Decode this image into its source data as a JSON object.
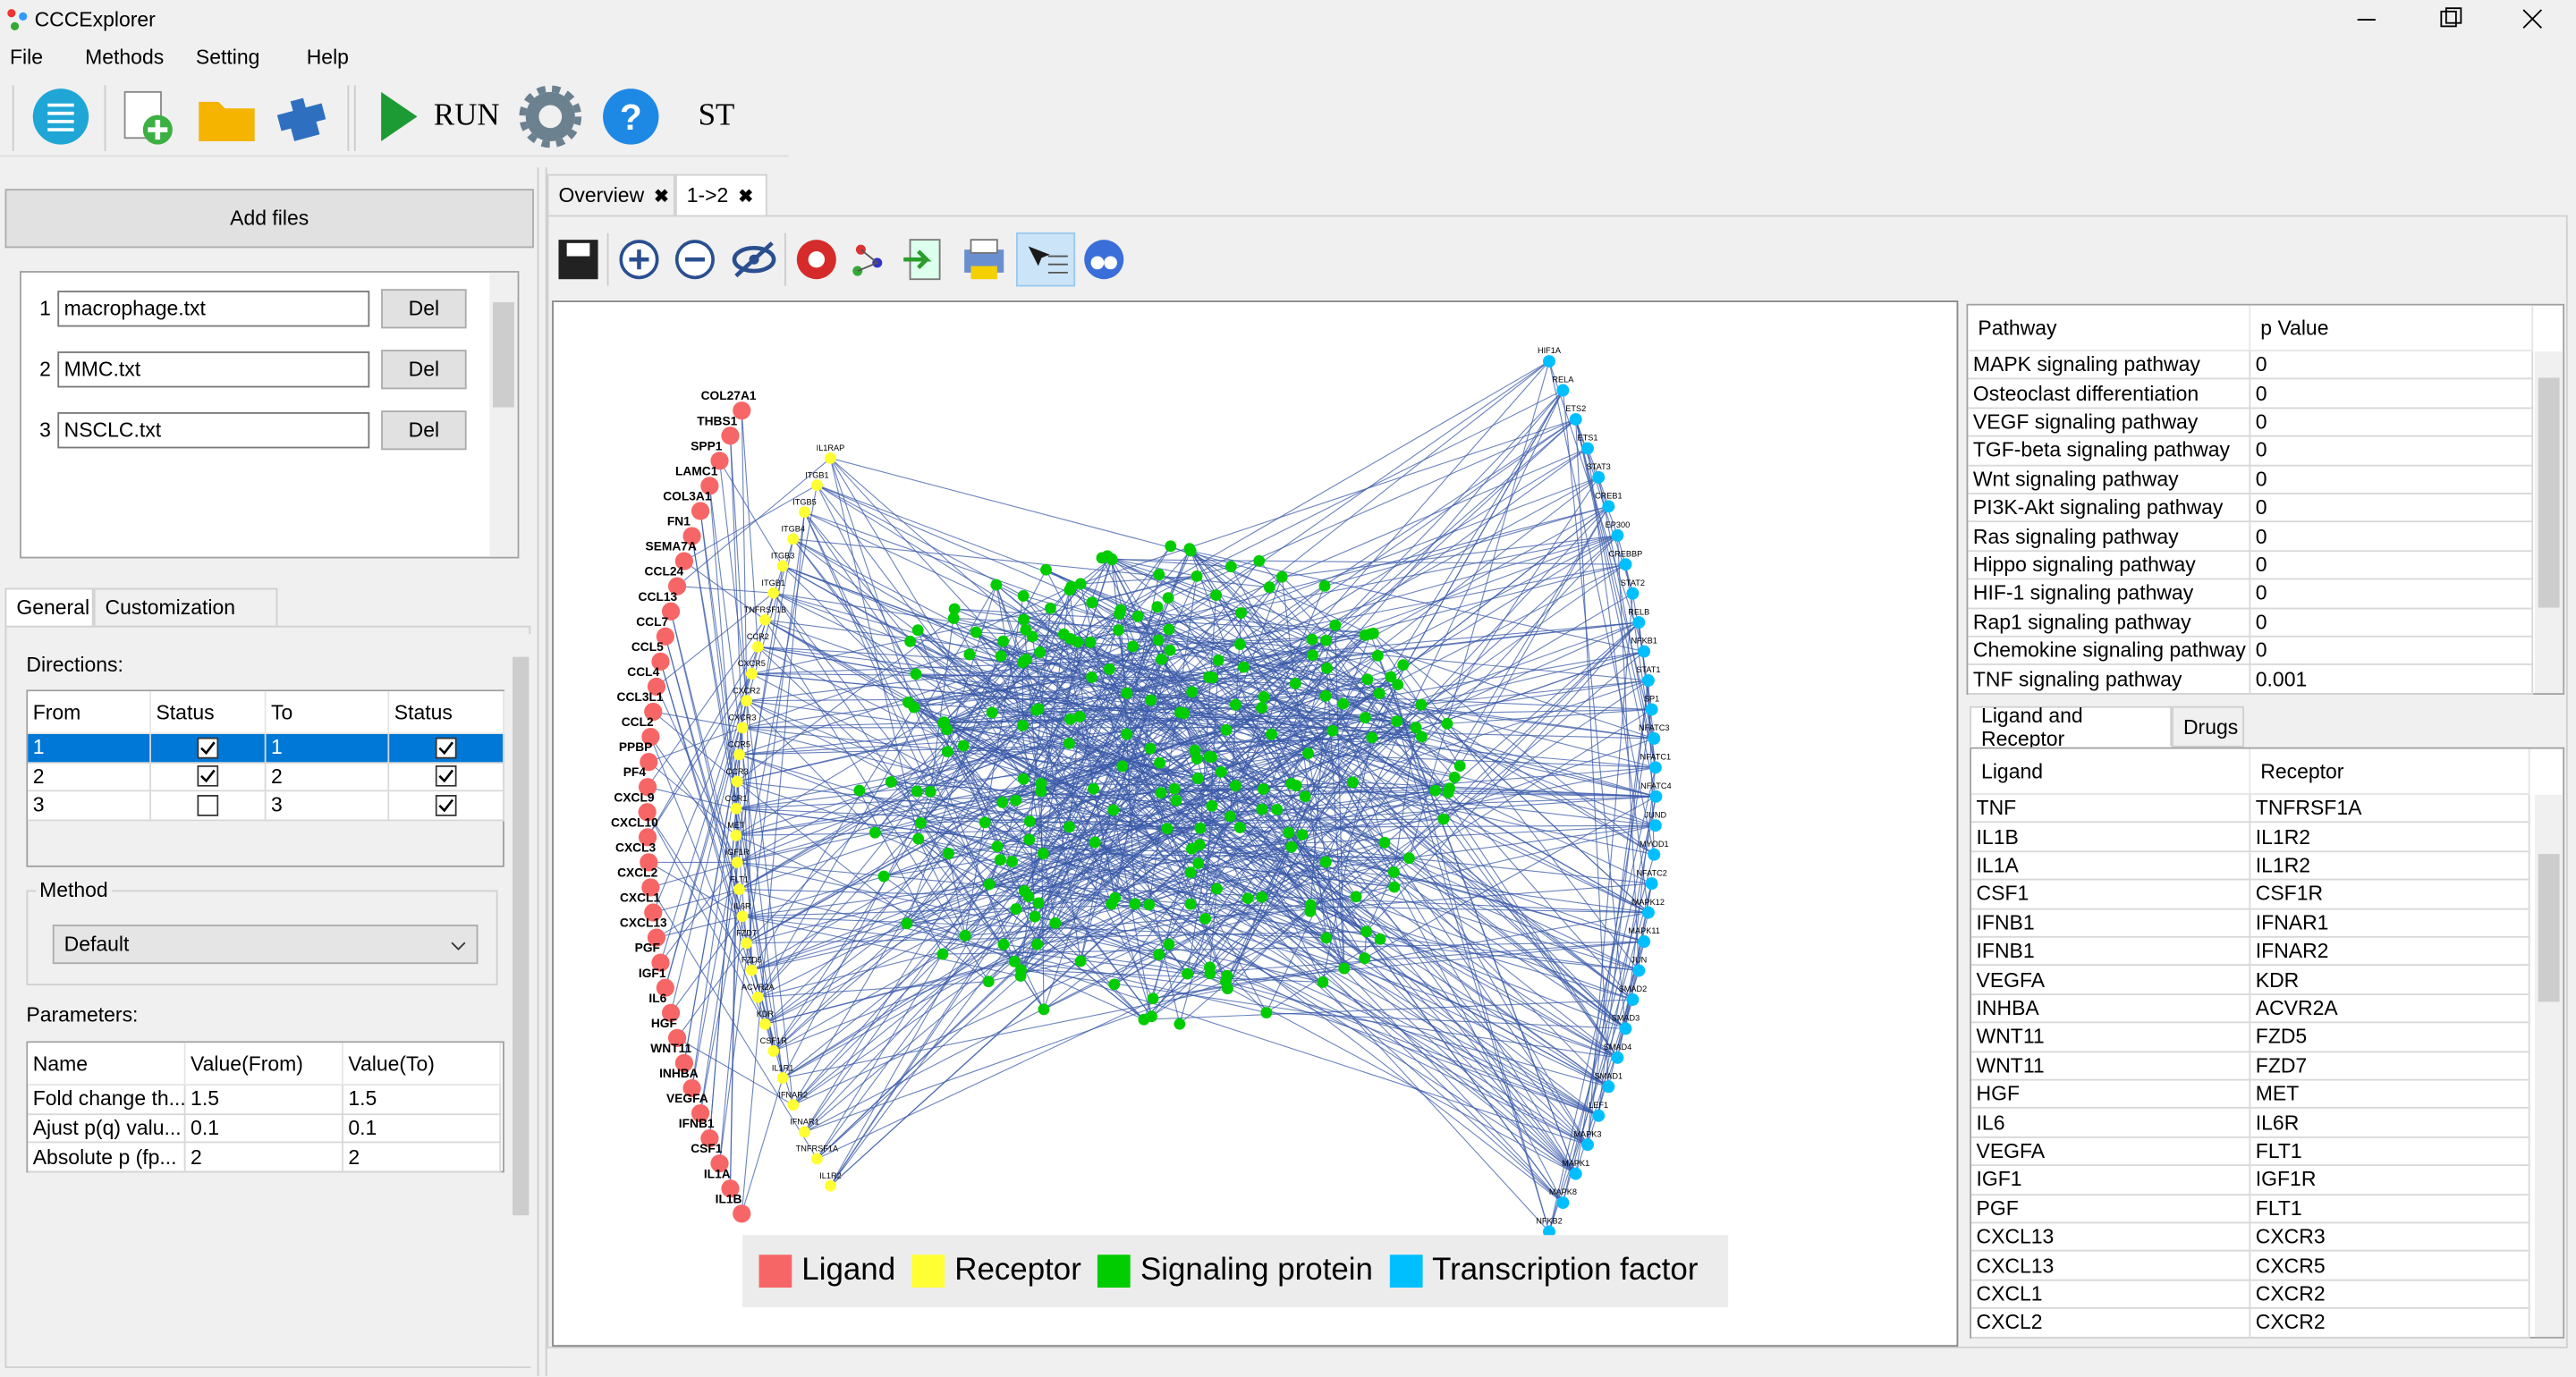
{
  "window": {
    "title": "CCCExplorer"
  },
  "menu": [
    "File",
    "Methods",
    "Setting",
    "Help"
  ],
  "toolbar": {
    "run": "RUN",
    "st": "ST"
  },
  "left": {
    "add_files": "Add files",
    "files": [
      {
        "index": "1",
        "name": "macrophage.txt",
        "button": "Del"
      },
      {
        "index": "2",
        "name": "MMC.txt",
        "button": "Del"
      },
      {
        "index": "3",
        "name": "NSCLC.txt",
        "button": "Del"
      }
    ],
    "tabs": [
      "General",
      "Customization"
    ],
    "directions_label": "Directions:",
    "directions": {
      "columns": [
        "From",
        "Status",
        "To",
        "Status"
      ],
      "rows": [
        [
          "1",
          true,
          "1",
          true
        ],
        [
          "2",
          true,
          "2",
          true
        ],
        [
          "3",
          false,
          "3",
          true
        ]
      ]
    },
    "method_label": "Method",
    "method": "Default",
    "parameters_label": "Parameters:",
    "parameters": {
      "columns": [
        "Name",
        "Value(From)",
        "Value(To)"
      ],
      "rows": [
        [
          "Fold change th...",
          "1.5",
          "1.5"
        ],
        [
          "Ajust p(q) valu...",
          "0.1",
          "0.1"
        ],
        [
          "Absolute p (fp...",
          "2",
          "2"
        ]
      ]
    }
  },
  "tabs": [
    "Overview",
    "1->2"
  ],
  "network": {
    "ligands": [
      "COL27A1",
      "THBS1",
      "SPP1",
      "LAMC1",
      "COL3A1",
      "FN1",
      "SEMA7A",
      "CCL24",
      "CCL13",
      "CCL7",
      "CCL5",
      "CCL4",
      "CCL3L1",
      "CCL2",
      "PPBP",
      "PF4",
      "CXCL9",
      "CXCL10",
      "CXCL3",
      "CXCL2",
      "CXCL1",
      "CXCL13",
      "PGF",
      "IGF1",
      "IL6",
      "HGF",
      "WNT11",
      "INHBA",
      "VEGFA",
      "IFNB1",
      "CSF1",
      "IL1A",
      "IL1B"
    ],
    "receptors": [
      "IL1RAP",
      "ITGB1",
      "ITGB5",
      "ITGB4",
      "ITGB3",
      "ITGB1",
      "TNFRSF1B",
      "CCR2",
      "CXCR5",
      "CXCR2",
      "CXCR3",
      "CCR5",
      "CCR3",
      "CCR1",
      "MET",
      "IGF1R",
      "FLT1",
      "IL6R",
      "FZD7",
      "FZD5",
      "ACVR2A",
      "KDR",
      "CSF1R",
      "IL1R1",
      "IFNAR2",
      "IFNAR1",
      "TNFRSF1A",
      "IL1R2"
    ],
    "transcription_factors": [
      "HIF1A",
      "RELA",
      "ETS2",
      "ETS1",
      "STAT3",
      "CREB1",
      "EP300",
      "CREBBP",
      "STAT2",
      "RELB",
      "NFKB1",
      "STAT1",
      "SP1",
      "NFATC3",
      "NFATC1",
      "NFATC4",
      "JUND",
      "MYOD1",
      "NFATC2",
      "MAPK12",
      "MAPK11",
      "JUN",
      "SMAD2",
      "SMAD3",
      "SMAD4",
      "SMAD1",
      "LEF1",
      "MAPK3",
      "MAPK1",
      "MAPK8",
      "NFKB2"
    ],
    "legend": [
      {
        "label": "Ligand",
        "color": "#f76666"
      },
      {
        "label": "Receptor",
        "color": "#ffff33"
      },
      {
        "label": "Signaling protein",
        "color": "#00cc00"
      },
      {
        "label": "Transcription factor",
        "color": "#00bfff"
      }
    ]
  },
  "pathways": {
    "columns": [
      "Pathway",
      "p Value"
    ],
    "rows": [
      [
        "MAPK signaling pathway",
        "0"
      ],
      [
        "Osteoclast differentiation",
        "0"
      ],
      [
        "VEGF signaling pathway",
        "0"
      ],
      [
        "TGF-beta signaling pathway",
        "0"
      ],
      [
        "Wnt signaling pathway",
        "0"
      ],
      [
        "PI3K-Akt signaling pathway",
        "0"
      ],
      [
        "Ras signaling pathway",
        "0"
      ],
      [
        "Hippo signaling pathway",
        "0"
      ],
      [
        "HIF-1 signaling pathway",
        "0"
      ],
      [
        "Rap1 signaling pathway",
        "0"
      ],
      [
        "Chemokine signaling pathway",
        "0"
      ],
      [
        "TNF signaling pathway",
        "0.001"
      ]
    ]
  },
  "lower_tabs": [
    "Ligand and Receptor",
    "Drugs"
  ],
  "pairs": {
    "columns": [
      "Ligand",
      "Receptor"
    ],
    "rows": [
      [
        "TNF",
        "TNFRSF1A"
      ],
      [
        "IL1B",
        "IL1R2"
      ],
      [
        "IL1A",
        "IL1R2"
      ],
      [
        "CSF1",
        "CSF1R"
      ],
      [
        "IFNB1",
        "IFNAR1"
      ],
      [
        "IFNB1",
        "IFNAR2"
      ],
      [
        "VEGFA",
        "KDR"
      ],
      [
        "INHBA",
        "ACVR2A"
      ],
      [
        "WNT11",
        "FZD5"
      ],
      [
        "WNT11",
        "FZD7"
      ],
      [
        "HGF",
        "MET"
      ],
      [
        "IL6",
        "IL6R"
      ],
      [
        "VEGFA",
        "FLT1"
      ],
      [
        "IGF1",
        "IGF1R"
      ],
      [
        "PGF",
        "FLT1"
      ],
      [
        "CXCL13",
        "CXCR3"
      ],
      [
        "CXCL13",
        "CXCR5"
      ],
      [
        "CXCL1",
        "CXCR2"
      ],
      [
        "CXCL2",
        "CXCR2"
      ]
    ]
  }
}
